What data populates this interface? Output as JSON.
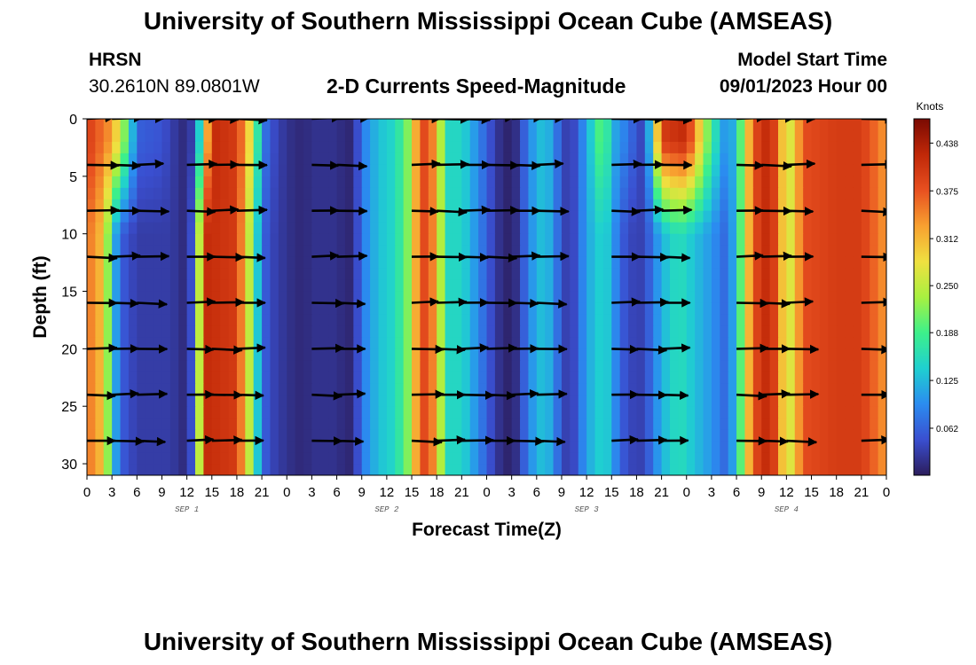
{
  "page": {
    "title": "University of Southern Mississippi Ocean Cube (AMSEAS)",
    "title_repeat": "University of Southern Mississippi Ocean Cube (AMSEAS)",
    "station_name": "HRSN",
    "station_coords": "30.2610N  89.0801W",
    "plot_title": "2-D Currents Speed-Magnitude",
    "model_start_label": "Model Start Time",
    "model_start_value": "09/01/2023 Hour 00"
  },
  "chart_data": {
    "type": "heatmap",
    "title": "2-D Currents Speed-Magnitude",
    "xlabel": "Forecast Time(Z)",
    "ylabel": "Depth (ft)",
    "x_tick_labels": [
      "0",
      "3",
      "6",
      "9",
      "12",
      "15",
      "18",
      "21",
      "0",
      "3",
      "6",
      "9",
      "12",
      "15",
      "18",
      "21",
      "0",
      "3",
      "6",
      "9",
      "12",
      "15",
      "18",
      "21",
      "0",
      "3",
      "6",
      "9",
      "12",
      "15",
      "18",
      "21",
      "0"
    ],
    "x_range_hours": [
      0,
      96
    ],
    "day_labels": [
      {
        "text": "SEP 1",
        "hour": 12
      },
      {
        "text": "SEP 2",
        "hour": 36
      },
      {
        "text": "SEP 3",
        "hour": 60
      },
      {
        "text": "SEP 4",
        "hour": 84
      }
    ],
    "y_ticks": [
      0,
      5,
      10,
      15,
      20,
      25,
      30
    ],
    "y_tick_labels": [
      "0",
      "5",
      "10",
      "15",
      "20",
      "25",
      "30"
    ],
    "ylim": [
      0,
      31
    ],
    "colorbar": {
      "unit": "Knots",
      "min": 0,
      "max": 0.47,
      "tick_values": [
        0.438,
        0.375,
        0.312,
        0.25,
        0.188,
        0.125,
        0.062
      ],
      "tick_labels": [
        "0.438",
        "0.375",
        "0.312",
        "0.250",
        "0.188",
        "0.125",
        "0.062"
      ],
      "colors": [
        "#2c1d5c",
        "#3a4fd0",
        "#2b8cf0",
        "#1fd0d0",
        "#3df08a",
        "#a8f040",
        "#f0e040",
        "#f8a030",
        "#e85020",
        "#c02808",
        "#7a0a02"
      ]
    },
    "speed_surface_knots_by_hour": [
      [
        0,
        0.4
      ],
      [
        3,
        0.33
      ],
      [
        5,
        0.18
      ],
      [
        6,
        0.06
      ],
      [
        9,
        0.05
      ],
      [
        11,
        0.02
      ],
      [
        12,
        0.01
      ],
      [
        13,
        0.05
      ],
      [
        15,
        0.42
      ],
      [
        18,
        0.4
      ],
      [
        20,
        0.25
      ],
      [
        21,
        0.09
      ],
      [
        22,
        0.05
      ],
      [
        24,
        0.02
      ],
      [
        26,
        0.01
      ],
      [
        27,
        0.02
      ],
      [
        30,
        0.02
      ],
      [
        31,
        0.01
      ],
      [
        32,
        0.01
      ],
      [
        33,
        0.08
      ],
      [
        35,
        0.13
      ],
      [
        37,
        0.15
      ],
      [
        39,
        0.24
      ],
      [
        40,
        0.4
      ],
      [
        42,
        0.33
      ],
      [
        43,
        0.15
      ],
      [
        45,
        0.15
      ],
      [
        47,
        0.09
      ],
      [
        48,
        0.06
      ],
      [
        49,
        0.03
      ],
      [
        50,
        0.01
      ],
      [
        51,
        0.005
      ],
      [
        52,
        0.03
      ],
      [
        53,
        0.09
      ],
      [
        55,
        0.14
      ],
      [
        57,
        0.05
      ],
      [
        58,
        0.02
      ],
      [
        60,
        0.11
      ],
      [
        62,
        0.22
      ],
      [
        63,
        0.12
      ],
      [
        64,
        0.1
      ],
      [
        66,
        0.05
      ],
      [
        67,
        0.03
      ],
      [
        68,
        0.2
      ],
      [
        69,
        0.4
      ],
      [
        72,
        0.42
      ],
      [
        75,
        0.18
      ],
      [
        77,
        0.08
      ],
      [
        78,
        0.15
      ],
      [
        79,
        0.25
      ],
      [
        80,
        0.38
      ],
      [
        82,
        0.43
      ],
      [
        83,
        0.36
      ],
      [
        84,
        0.25
      ],
      [
        85,
        0.29
      ],
      [
        86,
        0.38
      ],
      [
        90,
        0.4
      ],
      [
        93,
        0.4
      ],
      [
        96,
        0.33
      ]
    ],
    "speed_mid_knots_by_hour": [
      [
        0,
        0.36
      ],
      [
        2,
        0.3
      ],
      [
        3,
        0.15
      ],
      [
        4,
        0.06
      ],
      [
        6,
        0.03
      ],
      [
        9,
        0.03
      ],
      [
        10,
        0.03
      ],
      [
        11,
        0.02
      ],
      [
        12,
        0.01
      ],
      [
        13,
        0.08
      ],
      [
        14,
        0.42
      ],
      [
        18,
        0.4
      ],
      [
        19,
        0.3
      ],
      [
        20,
        0.2
      ],
      [
        21,
        0.07
      ],
      [
        22,
        0.04
      ],
      [
        24,
        0.02
      ],
      [
        26,
        0.01
      ],
      [
        27,
        0.02
      ],
      [
        30,
        0.02
      ],
      [
        31,
        0.01
      ],
      [
        32,
        0.01
      ],
      [
        33,
        0.08
      ],
      [
        35,
        0.13
      ],
      [
        37,
        0.15
      ],
      [
        39,
        0.24
      ],
      [
        40,
        0.4
      ],
      [
        42,
        0.33
      ],
      [
        43,
        0.15
      ],
      [
        45,
        0.15
      ],
      [
        47,
        0.09
      ],
      [
        48,
        0.06
      ],
      [
        49,
        0.03
      ],
      [
        50,
        0.01
      ],
      [
        51,
        0.005
      ],
      [
        52,
        0.03
      ],
      [
        53,
        0.09
      ],
      [
        55,
        0.14
      ],
      [
        57,
        0.05
      ],
      [
        58,
        0.02
      ],
      [
        60,
        0.11
      ],
      [
        62,
        0.15
      ],
      [
        63,
        0.12
      ],
      [
        64,
        0.06
      ],
      [
        66,
        0.03
      ],
      [
        67,
        0.04
      ],
      [
        69,
        0.12
      ],
      [
        71,
        0.16
      ],
      [
        73,
        0.13
      ],
      [
        75,
        0.1
      ],
      [
        77,
        0.06
      ],
      [
        78,
        0.15
      ],
      [
        79,
        0.25
      ],
      [
        80,
        0.38
      ],
      [
        82,
        0.43
      ],
      [
        83,
        0.36
      ],
      [
        84,
        0.25
      ],
      [
        85,
        0.29
      ],
      [
        86,
        0.38
      ],
      [
        90,
        0.4
      ],
      [
        93,
        0.4
      ],
      [
        96,
        0.33
      ]
    ],
    "vectors": {
      "depths_ft": [
        0,
        4,
        8,
        12,
        16,
        20,
        24,
        28
      ],
      "hours": [
        0,
        3,
        6,
        12,
        15,
        18,
        27,
        30,
        39,
        42,
        45,
        48,
        51,
        54,
        63,
        66,
        69,
        78,
        81,
        84,
        93,
        96
      ]
    }
  }
}
